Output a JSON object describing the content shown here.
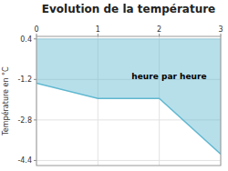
{
  "chart_data": {
    "type": "area",
    "title": "Evolution de la température",
    "y_label": "Température en °C",
    "x": [
      0,
      1,
      2,
      3
    ],
    "values": [
      -1.35,
      -1.95,
      -1.95,
      -4.15
    ],
    "fill_top": 0.4,
    "color": "#60b8d0",
    "xlim": [
      0,
      3
    ],
    "ylim": [
      -4.6,
      0.5
    ],
    "xticks": [
      0,
      1,
      2,
      3
    ],
    "yticks": [
      0.4,
      -1.2,
      -2.8,
      -4.4
    ],
    "grid": true,
    "annotations": [
      {
        "text": "heure par heure",
        "x": 1.55,
        "y": -0.95
      }
    ]
  }
}
